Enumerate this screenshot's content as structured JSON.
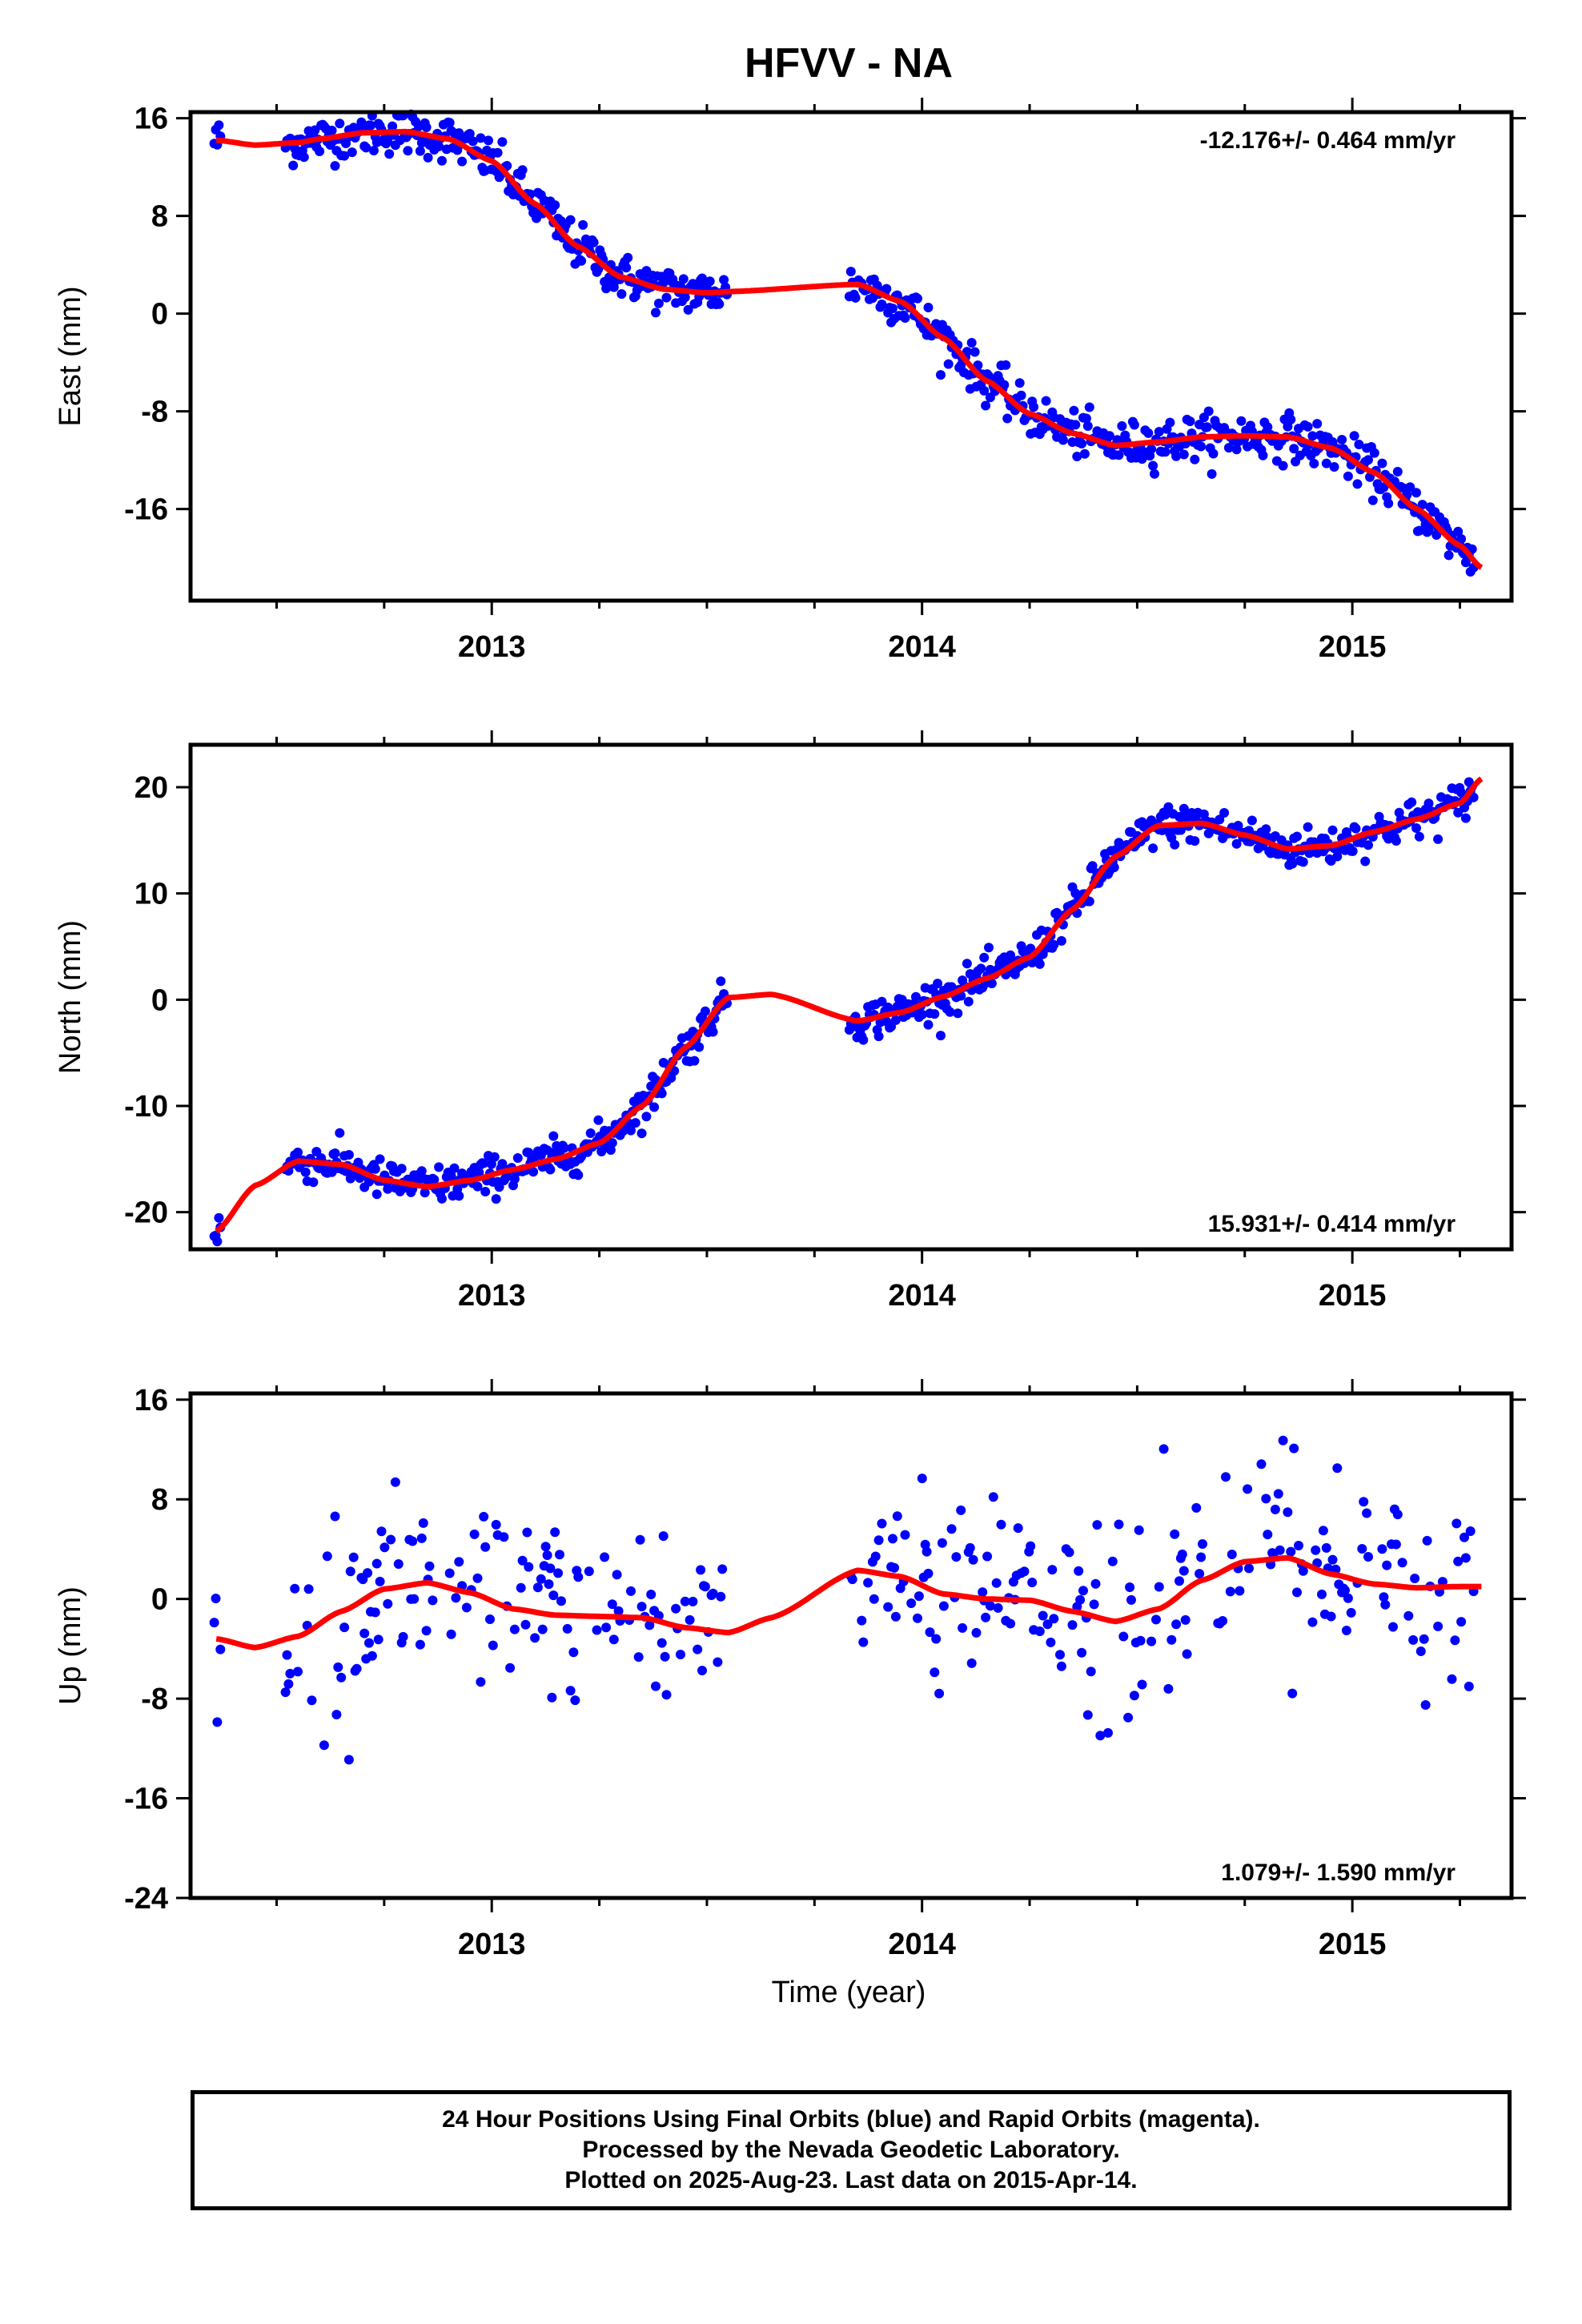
{
  "title": "HFVV - NA",
  "xlabel": "Time (year)",
  "x_ticks": [
    2013,
    2014,
    2015
  ],
  "colors": {
    "data": "#0000ff",
    "model": "#ff0000",
    "axis": "#000000"
  },
  "chart_data": [
    {
      "type": "scatter",
      "ylabel": "East (mm)",
      "xlim": [
        2012.3,
        2015.37
      ],
      "ylim": [
        -23.5,
        16.5
      ],
      "yticks": [
        16,
        8,
        0,
        -8,
        -16
      ],
      "rate_text": "-12.176+/- 0.464 mm/yr",
      "rate_position": "top-right",
      "series": [
        {
          "x": [
            2012.36,
            2012.45,
            2012.55,
            2012.6,
            2012.7,
            2012.8,
            2012.9,
            2013.0,
            2013.1,
            2013.2,
            2013.3,
            2013.4,
            2013.5,
            2013.55,
            2013.85,
            2013.95,
            2014.05,
            2014.15,
            2014.25,
            2014.35,
            2014.45,
            2014.55,
            2014.65,
            2014.75,
            2014.85,
            2014.95,
            2015.05,
            2015.15,
            2015.25,
            2015.3
          ],
          "y": [
            14.2,
            13.8,
            14.0,
            14.3,
            14.8,
            14.9,
            14.3,
            12.5,
            9.0,
            5.5,
            3.0,
            2.0,
            1.7,
            1.8,
            2.4,
            1.0,
            -2.0,
            -5.5,
            -8.2,
            -9.8,
            -10.8,
            -10.5,
            -10.1,
            -10.0,
            -10.1,
            -11.0,
            -13.0,
            -16.0,
            -19.0,
            -20.8
          ]
        }
      ]
    },
    {
      "type": "scatter",
      "ylabel": "North (mm)",
      "xlim": [
        2012.3,
        2015.37
      ],
      "ylim": [
        -23.5,
        24
      ],
      "yticks": [
        20,
        10,
        0,
        -10,
        -20
      ],
      "rate_text": "15.931+/- 0.414 mm/yr",
      "rate_position": "bottom-right",
      "series": [
        {
          "x": [
            2012.36,
            2012.45,
            2012.55,
            2012.65,
            2012.75,
            2012.85,
            2012.95,
            2013.05,
            2013.15,
            2013.25,
            2013.35,
            2013.45,
            2013.55,
            2013.65,
            2013.85,
            2013.95,
            2014.05,
            2014.15,
            2014.25,
            2014.35,
            2014.45,
            2014.55,
            2014.65,
            2014.75,
            2014.85,
            2014.95,
            2015.05,
            2015.15,
            2015.25,
            2015.3
          ],
          "y": [
            -21.8,
            -17.5,
            -15.2,
            -15.5,
            -17.0,
            -17.6,
            -17.0,
            -16.0,
            -15.0,
            -13.5,
            -10.0,
            -4.5,
            0.2,
            0.5,
            -2.0,
            -1.2,
            0.3,
            2.0,
            4.0,
            8.5,
            13.5,
            16.4,
            16.6,
            15.5,
            14.2,
            14.5,
            15.8,
            17.0,
            18.5,
            20.8
          ]
        }
      ]
    },
    {
      "type": "scatter",
      "ylabel": "Up (mm)",
      "xlim": [
        2012.3,
        2015.37
      ],
      "ylim": [
        -24,
        16.5
      ],
      "yticks": [
        16,
        8,
        0,
        -8,
        -16,
        -24
      ],
      "rate_text": "1.079+/- 1.590 mm/yr",
      "rate_position": "bottom-right",
      "series": [
        {
          "x": [
            2012.36,
            2012.45,
            2012.55,
            2012.65,
            2012.75,
            2012.85,
            2012.95,
            2013.05,
            2013.15,
            2013.25,
            2013.35,
            2013.45,
            2013.55,
            2013.65,
            2013.85,
            2013.95,
            2014.05,
            2014.15,
            2014.25,
            2014.35,
            2014.45,
            2014.55,
            2014.65,
            2014.75,
            2014.85,
            2014.95,
            2015.05,
            2015.15,
            2015.25,
            2015.3
          ],
          "y": [
            -3.2,
            -3.9,
            -3.0,
            -1.0,
            0.8,
            1.3,
            0.5,
            -0.8,
            -1.3,
            -1.4,
            -1.5,
            -2.3,
            -2.7,
            -1.5,
            2.3,
            1.8,
            0.4,
            0.0,
            -0.1,
            -1.0,
            -1.8,
            -0.8,
            1.5,
            3.0,
            3.3,
            2.0,
            1.2,
            0.9,
            1.0,
            1.0
          ]
        }
      ]
    }
  ],
  "footer": {
    "line1": "24 Hour Positions Using Final Orbits (blue) and Rapid Orbits (magenta).",
    "line2": "Processed by the Nevada Geodetic Laboratory.",
    "line3": "Plotted on 2025-Aug-23. Last data on 2015-Apr-14."
  }
}
